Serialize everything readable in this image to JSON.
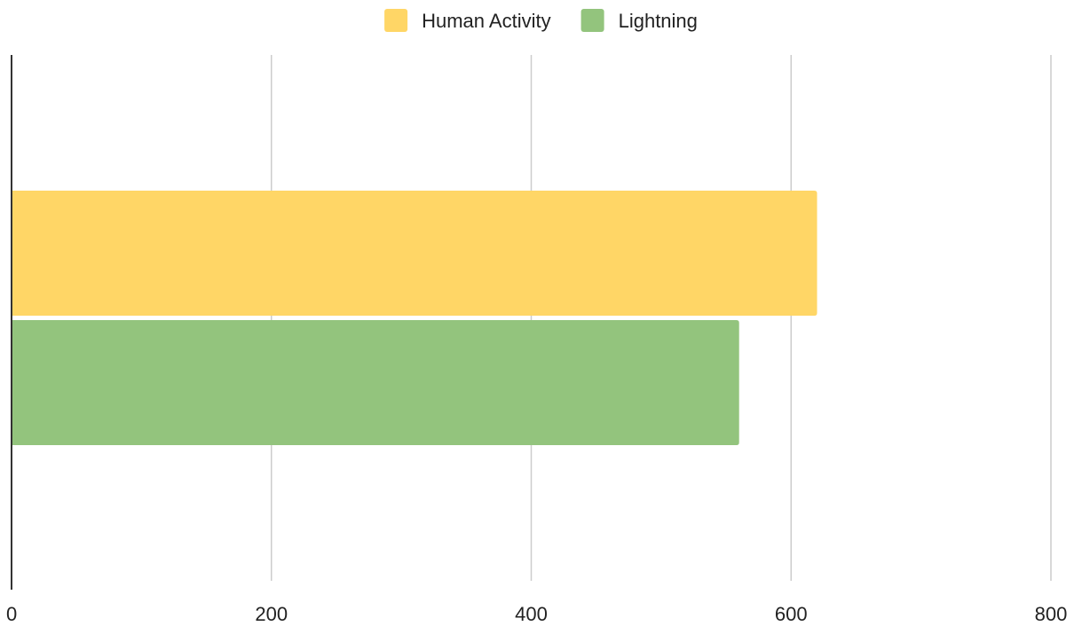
{
  "chart_data": {
    "type": "bar",
    "orientation": "horizontal",
    "title": "",
    "xlabel": "",
    "ylabel": "",
    "categories": [
      ""
    ],
    "series": [
      {
        "name": "Human Activity",
        "values": [
          620
        ],
        "color": "#FFD666"
      },
      {
        "name": "Lightning",
        "values": [
          560
        ],
        "color": "#93C47D"
      }
    ],
    "xlim": [
      0,
      800
    ],
    "x_ticks": [
      {
        "value": 0,
        "label": "0"
      },
      {
        "value": 200,
        "label": "200"
      },
      {
        "value": 400,
        "label": "400"
      },
      {
        "value": 600,
        "label": "600"
      },
      {
        "value": 800,
        "label": "800"
      }
    ],
    "grid": true,
    "grid_color": "#CCCCCC",
    "axis_color": "#333333",
    "text_color": "#222222",
    "legend_position": "top-center"
  }
}
